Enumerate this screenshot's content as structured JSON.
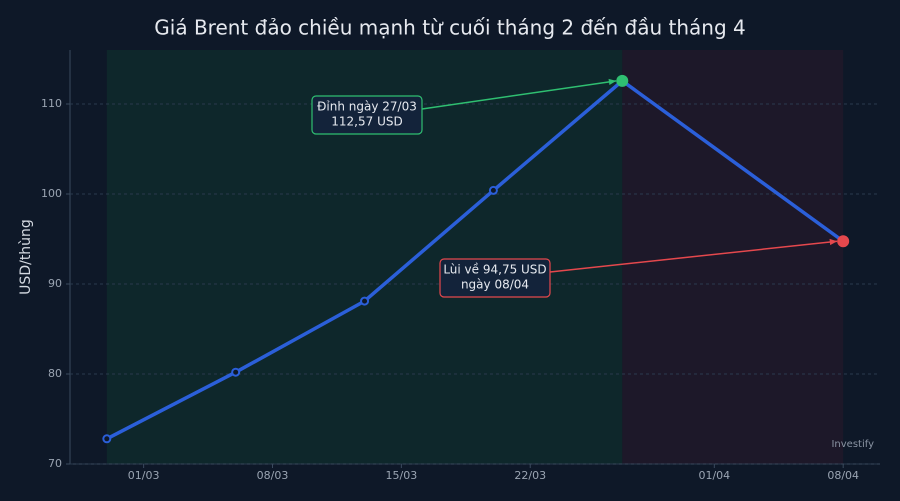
{
  "chart_data": {
    "type": "line",
    "title": "Giá Brent đảo chiều mạnh từ cuối tháng 2 đến đầu tháng 4",
    "y_label": "USD/thùng",
    "x": [
      "27/02",
      "06/03",
      "13/03",
      "20/03",
      "27/03",
      "08/04"
    ],
    "series": [
      {
        "name": "Brent",
        "color": "#2b5fd9",
        "values": [
          72.8,
          80.2,
          88.1,
          100.4,
          112.57,
          94.75
        ]
      }
    ],
    "xlim": [
      "25/02",
      "10/04"
    ],
    "xticks": [
      "01/03",
      "08/03",
      "15/03",
      "22/03",
      "01/04",
      "08/04"
    ],
    "ylim": [
      70,
      116
    ],
    "yticks": [
      70,
      80,
      90,
      100,
      110
    ],
    "grid": true,
    "annotations": [
      {
        "lines": [
          "Đỉnh ngày 27/03",
          "112,57 USD"
        ],
        "color": "#2fbf71"
      },
      {
        "lines": [
          "Lùi về 94,75 USD",
          "ngày 08/04"
        ],
        "color": "#e5484d"
      }
    ],
    "watermark": "Investify"
  }
}
